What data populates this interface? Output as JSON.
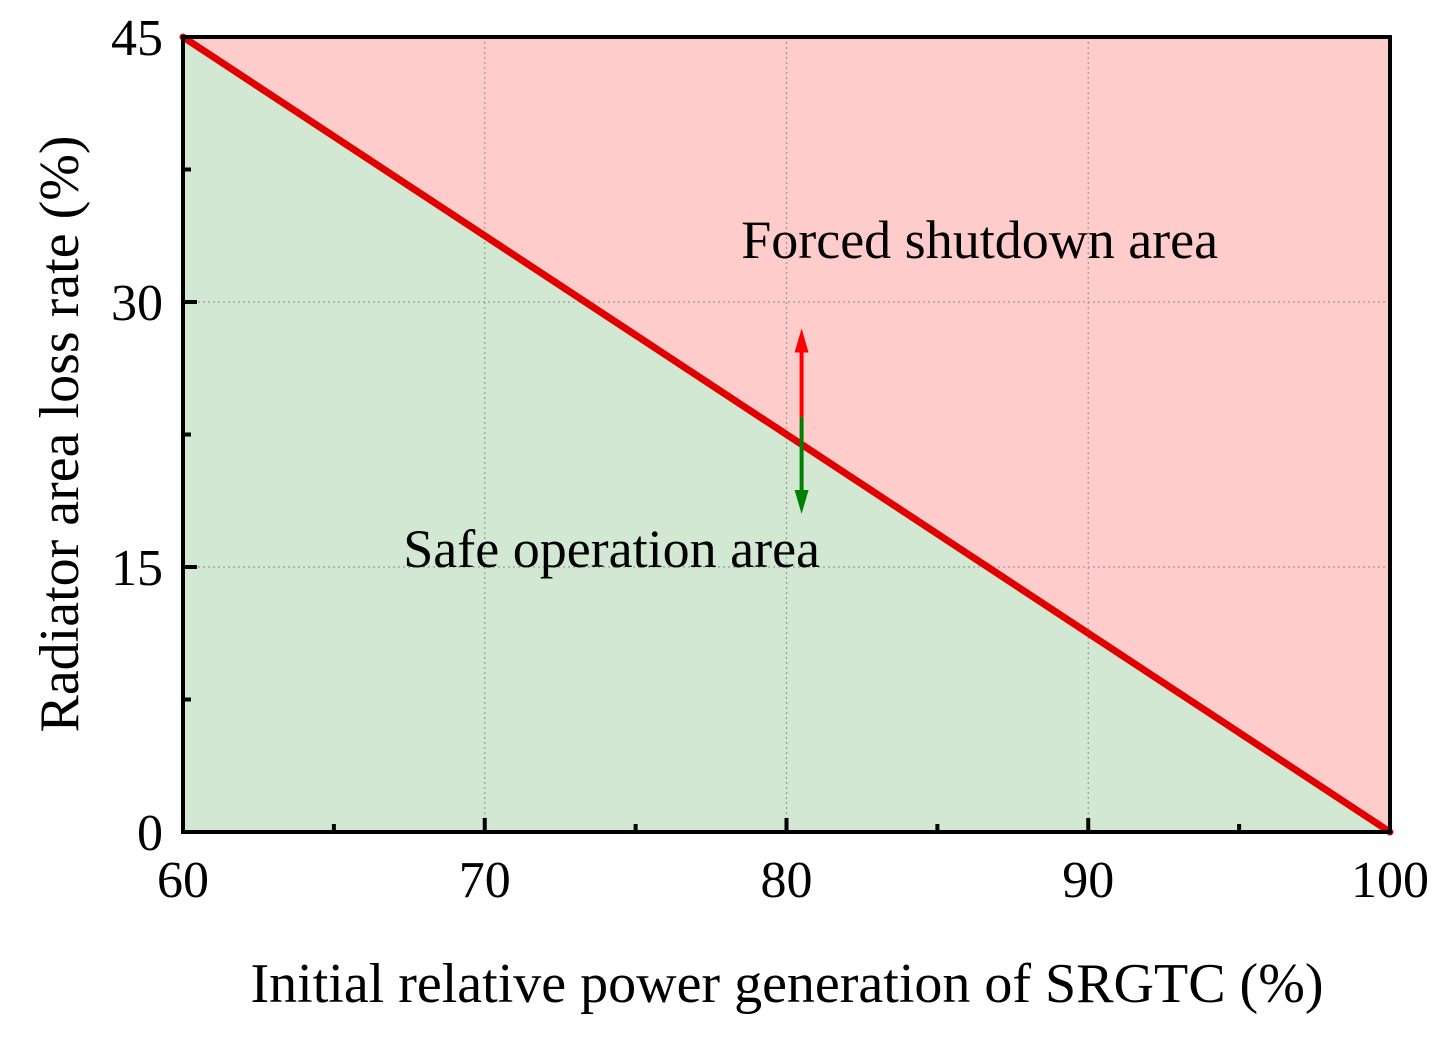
{
  "chart_data": {
    "type": "area",
    "xlabel": "Initial relative power generation of SRGTC (%)",
    "ylabel": "Radiator area loss rate (%)",
    "xlim": [
      60,
      100
    ],
    "ylim": [
      0,
      45
    ],
    "xticks": [
      60,
      70,
      80,
      90,
      100
    ],
    "yticks": [
      0,
      15,
      30,
      45
    ],
    "x_minor_step": 5,
    "y_minor_step": 7.5,
    "grid": true,
    "series": [
      {
        "x": [
          60,
          100
        ],
        "y": [
          45,
          0
        ]
      }
    ],
    "regions": [
      {
        "label": "Forced shutdown area",
        "position": "above",
        "color": "#ffcccc"
      },
      {
        "label": "Safe operation area",
        "position": "below",
        "color": "#d3e8d3"
      }
    ],
    "arrows": [
      {
        "x": 80.5,
        "y_from": 23.5,
        "y_to": 28.5,
        "color": "#ff0000"
      },
      {
        "x": 80.5,
        "y_from": 23.5,
        "y_to": 18.0,
        "color": "#008000"
      }
    ],
    "annotations": [
      {
        "text": "Forced shutdown area",
        "x": 78.5,
        "y": 32.5
      },
      {
        "text": "Safe operation area",
        "x": 67.3,
        "y": 15.0
      }
    ],
    "line_color": "#e00000"
  }
}
